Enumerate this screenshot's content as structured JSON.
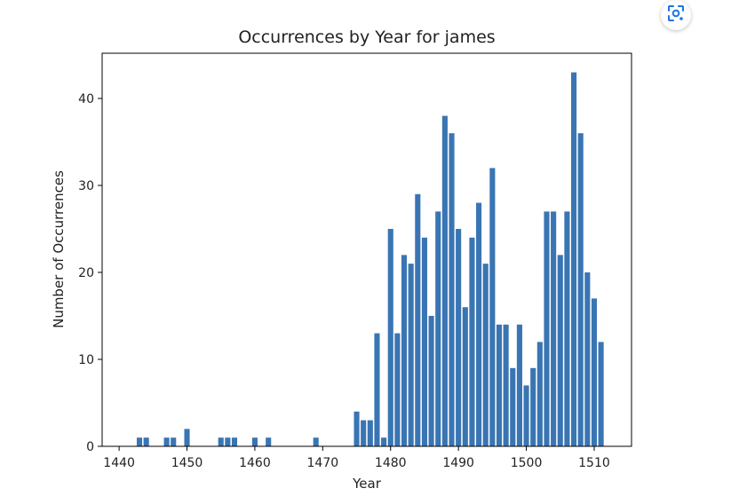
{
  "colors": {
    "bar": "#3a75b3",
    "axis": "#000000",
    "lens_icon": "#1a73e8"
  },
  "icons": {
    "lens": "google-lens-icon"
  },
  "chart_data": {
    "type": "bar",
    "title": "Occurrences by Year for james",
    "xlabel": "Year",
    "ylabel": "Number of Occurrences",
    "xlim": [
      1437.5,
      1515.5
    ],
    "ylim": [
      0,
      45.2
    ],
    "xticks": [
      1440,
      1450,
      1460,
      1470,
      1480,
      1490,
      1500,
      1510
    ],
    "yticks": [
      0,
      10,
      20,
      30,
      40
    ],
    "grid": false,
    "x": [
      1443,
      1444,
      1447,
      1448,
      1450,
      1455,
      1456,
      1457,
      1460,
      1462,
      1469,
      1475,
      1476,
      1477,
      1478,
      1479,
      1480,
      1481,
      1482,
      1483,
      1484,
      1485,
      1486,
      1487,
      1488,
      1489,
      1490,
      1491,
      1492,
      1493,
      1494,
      1495,
      1496,
      1497,
      1498,
      1499,
      1500,
      1501,
      1502,
      1503,
      1504,
      1505,
      1506,
      1507,
      1508,
      1509,
      1510,
      1511
    ],
    "values": [
      1,
      1,
      1,
      1,
      2,
      1,
      1,
      1,
      1,
      1,
      1,
      4,
      3,
      3,
      13,
      1,
      25,
      13,
      22,
      21,
      29,
      24,
      15,
      27,
      38,
      36,
      25,
      16,
      24,
      28,
      21,
      32,
      14,
      14,
      9,
      14,
      7,
      9,
      12,
      27,
      27,
      22,
      27,
      43,
      36,
      20,
      17,
      12
    ]
  }
}
